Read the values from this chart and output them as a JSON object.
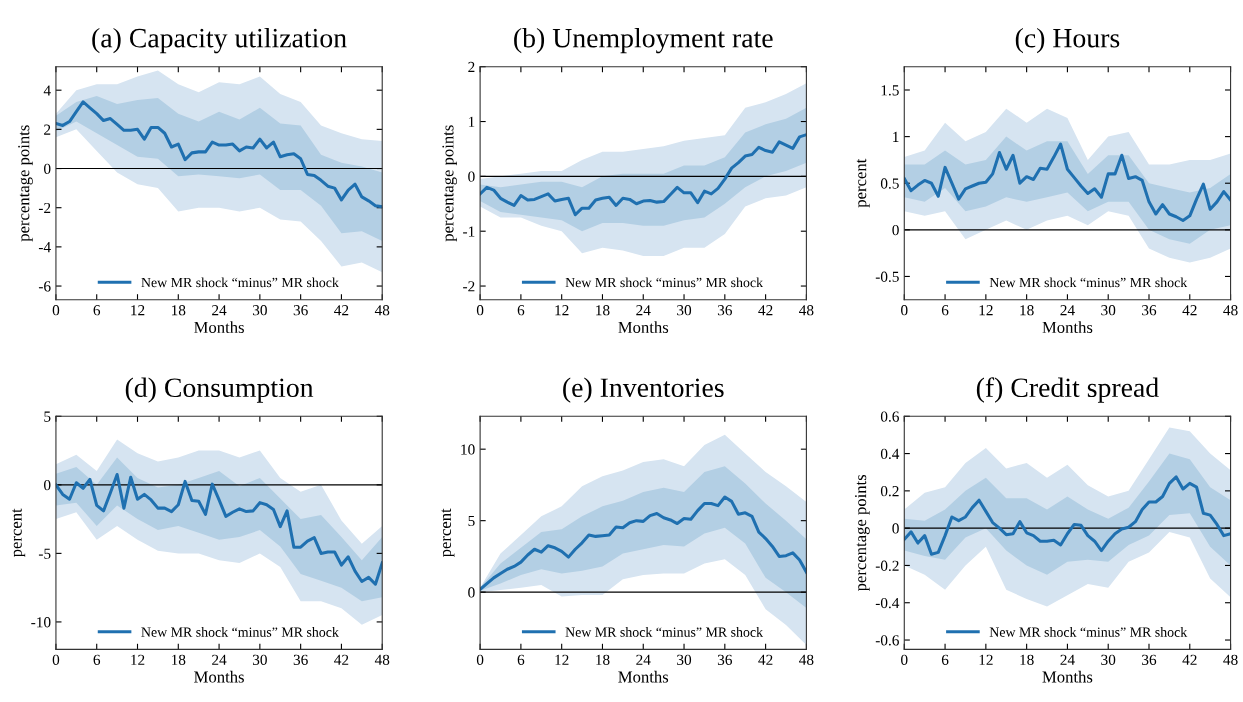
{
  "chart_data": [
    {
      "type": "line",
      "title": "(a) Capacity utilization",
      "xlabel": "Months",
      "ylabel": "percentage points",
      "xlim": [
        0,
        48
      ],
      "xticks": [
        0,
        6,
        12,
        18,
        24,
        30,
        36,
        42,
        48
      ],
      "ylim": [
        -6.7,
        5.2
      ],
      "yticks": [
        -6,
        -4,
        -2,
        0,
        2,
        4
      ],
      "legend": "bottom",
      "x": [
        0,
        1,
        2,
        3,
        4,
        5,
        6,
        7,
        8,
        9,
        10,
        11,
        12,
        13,
        14,
        15,
        16,
        17,
        18,
        19,
        20,
        21,
        22,
        23,
        24,
        25,
        26,
        27,
        28,
        29,
        30,
        31,
        32,
        33,
        34,
        35,
        36,
        37,
        38,
        39,
        40,
        41,
        42,
        43,
        44,
        45,
        46,
        47,
        48
      ],
      "ref_lines": [
        {
          "axis": "y",
          "value": 0,
          "color": "#000000"
        }
      ],
      "series": [
        {
          "color": "#d6e4f1",
          "x": [
            0,
            3,
            6,
            9,
            12,
            15,
            18,
            21,
            24,
            27,
            30,
            33,
            36,
            39,
            42,
            45,
            48
          ],
          "values": [
            null,
            null,
            null,
            null,
            null,
            null,
            null,
            null,
            null,
            null,
            null,
            null,
            null,
            null,
            null,
            null,
            null
          ],
          "lower": [
            1.6,
            2.0,
            0.9,
            -0.2,
            -0.8,
            -1.0,
            -2.2,
            -2.0,
            -2.0,
            -2.2,
            -2.0,
            -2.6,
            -2.7,
            -3.7,
            -5.0,
            -4.8,
            -5.3
          ],
          "upper": [
            2.8,
            4.0,
            4.3,
            4.3,
            4.7,
            5.0,
            4.3,
            3.9,
            4.4,
            4.3,
            4.7,
            3.8,
            3.4,
            2.2,
            1.8,
            1.5,
            1.4
          ]
        },
        {
          "color": "#b3cfe4",
          "x": [
            0,
            3,
            6,
            9,
            12,
            15,
            18,
            21,
            24,
            27,
            30,
            33,
            36,
            39,
            42,
            45,
            48
          ],
          "values": [
            null,
            null,
            null,
            null,
            null,
            null,
            null,
            null,
            null,
            null,
            null,
            null,
            null,
            null,
            null,
            null,
            null
          ],
          "lower": [
            1.9,
            2.4,
            1.8,
            1.2,
            0.6,
            0.5,
            -0.4,
            -0.3,
            -0.4,
            -0.5,
            -0.3,
            -1.1,
            -1.1,
            -1.9,
            -3.3,
            -3.2,
            -3.7
          ],
          "upper": [
            2.7,
            3.4,
            3.7,
            3.3,
            3.5,
            3.6,
            2.8,
            2.4,
            2.9,
            2.5,
            3.1,
            2.3,
            2.2,
            0.7,
            0.3,
            0.1,
            -0.2
          ]
        },
        {
          "name": "New MR shock “minus” MR shock",
          "color": "#1f70b0",
          "values": [
            2.3,
            2.2,
            2.4,
            2.9,
            3.4,
            3.1,
            2.8,
            2.45,
            2.55,
            2.25,
            1.95,
            1.95,
            2.0,
            1.5,
            2.1,
            2.1,
            1.8,
            1.1,
            1.25,
            0.45,
            0.8,
            0.85,
            0.85,
            1.35,
            1.2,
            1.2,
            1.25,
            0.9,
            1.1,
            1.05,
            1.5,
            1.05,
            1.35,
            0.6,
            0.7,
            0.75,
            0.5,
            -0.3,
            -0.35,
            -0.6,
            -0.9,
            -1.0,
            -1.6,
            -1.1,
            -0.8,
            -1.45,
            -1.65,
            -1.9,
            -1.95
          ]
        }
      ]
    },
    {
      "type": "line",
      "title": "(b) Unemployment rate",
      "xlabel": "Months",
      "ylabel": "percentage points",
      "xlim": [
        0,
        48
      ],
      "xticks": [
        0,
        6,
        12,
        18,
        24,
        30,
        36,
        42,
        48
      ],
      "ylim": [
        -2.25,
        2
      ],
      "yticks": [
        -2,
        -1,
        0,
        1,
        2
      ],
      "legend": "bottom",
      "x": [
        0,
        1,
        2,
        3,
        4,
        5,
        6,
        7,
        8,
        9,
        10,
        11,
        12,
        13,
        14,
        15,
        16,
        17,
        18,
        19,
        20,
        21,
        22,
        23,
        24,
        25,
        26,
        27,
        28,
        29,
        30,
        31,
        32,
        33,
        34,
        35,
        36,
        37,
        38,
        39,
        40,
        41,
        42,
        43,
        44,
        45,
        46,
        47,
        48
      ],
      "ref_lines": [
        {
          "axis": "y",
          "value": 0,
          "color": "#000000"
        }
      ],
      "series": [
        {
          "color": "#d6e4f1",
          "x": [
            0,
            3,
            6,
            9,
            12,
            15,
            18,
            21,
            24,
            27,
            30,
            33,
            36,
            39,
            42,
            45,
            48
          ],
          "values": [
            null,
            null,
            null,
            null,
            null,
            null,
            null,
            null,
            null,
            null,
            null,
            null,
            null,
            null,
            null,
            null,
            null
          ],
          "lower": [
            -0.55,
            -0.75,
            -0.75,
            -0.9,
            -1.0,
            -1.4,
            -1.3,
            -1.35,
            -1.45,
            -1.45,
            -1.3,
            -1.3,
            -1.05,
            -0.55,
            -0.4,
            -0.35,
            -0.2
          ],
          "upper": [
            -0.05,
            0.0,
            0.05,
            0.1,
            0.1,
            0.3,
            0.45,
            0.45,
            0.5,
            0.55,
            0.65,
            0.7,
            0.75,
            1.25,
            1.35,
            1.5,
            1.7
          ]
        },
        {
          "color": "#b3cfe4",
          "x": [
            0,
            3,
            6,
            9,
            12,
            15,
            18,
            21,
            24,
            27,
            30,
            33,
            36,
            39,
            42,
            45,
            48
          ],
          "values": [
            null,
            null,
            null,
            null,
            null,
            null,
            null,
            null,
            null,
            null,
            null,
            null,
            null,
            null,
            null,
            null,
            null
          ],
          "lower": [
            -0.45,
            -0.65,
            -0.7,
            -0.75,
            -0.8,
            -1.0,
            -0.85,
            -0.85,
            -0.9,
            -0.9,
            -0.8,
            -0.75,
            -0.5,
            -0.2,
            0.0,
            0.1,
            0.25
          ],
          "upper": [
            -0.15,
            -0.2,
            -0.15,
            -0.1,
            -0.1,
            -0.2,
            0.0,
            0.05,
            0.05,
            0.05,
            0.2,
            0.2,
            0.35,
            0.8,
            0.95,
            1.05,
            1.25
          ]
        },
        {
          "name": "New MR shock “minus” MR shock",
          "color": "#1f70b0",
          "values": [
            -0.32,
            -0.2,
            -0.25,
            -0.4,
            -0.47,
            -0.53,
            -0.35,
            -0.43,
            -0.42,
            -0.37,
            -0.32,
            -0.45,
            -0.42,
            -0.4,
            -0.7,
            -0.58,
            -0.58,
            -0.43,
            -0.4,
            -0.38,
            -0.53,
            -0.4,
            -0.42,
            -0.5,
            -0.45,
            -0.44,
            -0.47,
            -0.46,
            -0.33,
            -0.2,
            -0.3,
            -0.3,
            -0.48,
            -0.27,
            -0.32,
            -0.22,
            -0.05,
            0.15,
            0.25,
            0.37,
            0.4,
            0.53,
            0.47,
            0.44,
            0.63,
            0.57,
            0.51,
            0.72,
            0.76
          ]
        }
      ]
    },
    {
      "type": "line",
      "title": "(c) Hours",
      "xlabel": "Months",
      "ylabel": "percent",
      "xlim": [
        0,
        48
      ],
      "xticks": [
        0,
        6,
        12,
        18,
        24,
        30,
        36,
        42,
        48
      ],
      "ylim": [
        -0.75,
        1.75
      ],
      "yticks": [
        -0.5,
        0,
        0.5,
        1,
        1.5
      ],
      "legend": "bottom",
      "x": [
        0,
        1,
        2,
        3,
        4,
        5,
        6,
        7,
        8,
        9,
        10,
        11,
        12,
        13,
        14,
        15,
        16,
        17,
        18,
        19,
        20,
        21,
        22,
        23,
        24,
        25,
        26,
        27,
        28,
        29,
        30,
        31,
        32,
        33,
        34,
        35,
        36,
        37,
        38,
        39,
        40,
        41,
        42,
        43,
        44,
        45,
        46,
        47,
        48
      ],
      "ref_lines": [
        {
          "axis": "y",
          "value": 0,
          "color": "#000000"
        }
      ],
      "series": [
        {
          "color": "#d6e4f1",
          "x": [
            0,
            3,
            6,
            9,
            12,
            15,
            18,
            21,
            24,
            27,
            30,
            33,
            36,
            39,
            42,
            45,
            48
          ],
          "values": [
            null,
            null,
            null,
            null,
            null,
            null,
            null,
            null,
            null,
            null,
            null,
            null,
            null,
            null,
            null,
            null,
            null
          ],
          "lower": [
            0.2,
            0.15,
            0.2,
            -0.1,
            0.0,
            0.1,
            0.0,
            0.1,
            0.15,
            0.05,
            0.2,
            0.15,
            -0.2,
            -0.3,
            -0.35,
            -0.3,
            -0.2
          ],
          "upper": [
            0.78,
            0.85,
            1.15,
            0.95,
            1.05,
            1.3,
            1.15,
            1.3,
            1.2,
            0.75,
            1.0,
            1.05,
            0.7,
            0.7,
            0.75,
            0.75,
            0.82
          ]
        },
        {
          "color": "#b3cfe4",
          "x": [
            0,
            3,
            6,
            9,
            12,
            15,
            18,
            21,
            24,
            27,
            30,
            33,
            36,
            39,
            42,
            45,
            48
          ],
          "values": [
            null,
            null,
            null,
            null,
            null,
            null,
            null,
            null,
            null,
            null,
            null,
            null,
            null,
            null,
            null,
            null,
            null
          ],
          "lower": [
            0.35,
            0.3,
            0.45,
            0.2,
            0.25,
            0.35,
            0.3,
            0.35,
            0.4,
            0.2,
            0.3,
            0.3,
            0.0,
            -0.1,
            -0.15,
            0.0,
            0.05
          ],
          "upper": [
            0.7,
            0.7,
            0.85,
            0.7,
            0.75,
            1.0,
            0.85,
            0.95,
            0.95,
            0.6,
            0.8,
            0.8,
            0.5,
            0.45,
            0.4,
            0.45,
            0.6
          ]
        },
        {
          "name": "New MR shock “minus” MR shock",
          "color": "#1f70b0",
          "values": [
            0.55,
            0.42,
            0.48,
            0.53,
            0.5,
            0.36,
            0.67,
            0.5,
            0.33,
            0.44,
            0.47,
            0.5,
            0.51,
            0.6,
            0.83,
            0.65,
            0.8,
            0.5,
            0.57,
            0.54,
            0.66,
            0.65,
            0.78,
            0.92,
            0.65,
            0.56,
            0.47,
            0.39,
            0.44,
            0.35,
            0.6,
            0.6,
            0.8,
            0.55,
            0.57,
            0.53,
            0.3,
            0.17,
            0.27,
            0.17,
            0.14,
            0.1,
            0.15,
            0.33,
            0.49,
            0.22,
            0.3,
            0.41,
            0.32
          ]
        }
      ]
    },
    {
      "type": "line",
      "title": "(d) Consumption",
      "xlabel": "Months",
      "ylabel": "percent",
      "xlim": [
        0,
        48
      ],
      "xticks": [
        0,
        6,
        12,
        18,
        24,
        30,
        36,
        42,
        48
      ],
      "ylim": [
        -12,
        5
      ],
      "yticks": [
        -10,
        -5,
        0,
        5
      ],
      "legend": "bottom",
      "x": [
        0,
        1,
        2,
        3,
        4,
        5,
        6,
        7,
        8,
        9,
        10,
        11,
        12,
        13,
        14,
        15,
        16,
        17,
        18,
        19,
        20,
        21,
        22,
        23,
        24,
        25,
        26,
        27,
        28,
        29,
        30,
        31,
        32,
        33,
        34,
        35,
        36,
        37,
        38,
        39,
        40,
        41,
        42,
        43,
        44,
        45,
        46,
        47,
        48
      ],
      "ref_lines": [
        {
          "axis": "y",
          "value": 0,
          "color": "#000000"
        }
      ],
      "series": [
        {
          "color": "#d6e4f1",
          "x": [
            0,
            3,
            6,
            9,
            12,
            15,
            18,
            21,
            24,
            27,
            30,
            33,
            36,
            39,
            42,
            45,
            48
          ],
          "values": [
            null,
            null,
            null,
            null,
            null,
            null,
            null,
            null,
            null,
            null,
            null,
            null,
            null,
            null,
            null,
            null,
            null
          ],
          "lower": [
            -2.5,
            -2.0,
            -4.0,
            -3.0,
            -4.0,
            -4.8,
            -5.0,
            -5.0,
            -5.5,
            -5.7,
            -5.0,
            -6.0,
            -8.5,
            -8.5,
            -9.0,
            -10.2,
            -9.5
          ],
          "upper": [
            1.5,
            2.2,
            1.0,
            3.3,
            2.3,
            1.7,
            2.0,
            2.5,
            2.5,
            2.0,
            2.5,
            0.5,
            -0.5,
            0.0,
            -2.6,
            -4.3,
            -3.0
          ]
        },
        {
          "color": "#b3cfe4",
          "x": [
            0,
            3,
            6,
            9,
            12,
            15,
            18,
            21,
            24,
            27,
            30,
            33,
            36,
            39,
            42,
            45,
            48
          ],
          "values": [
            null,
            null,
            null,
            null,
            null,
            null,
            null,
            null,
            null,
            null,
            null,
            null,
            null,
            null,
            null,
            null,
            null
          ],
          "lower": [
            -1.5,
            -1.3,
            -3.0,
            -1.5,
            -2.5,
            -3.3,
            -3.0,
            -3.5,
            -4.0,
            -3.8,
            -3.3,
            -4.5,
            -6.5,
            -7.0,
            -7.5,
            -8.5,
            -8.2
          ],
          "upper": [
            0.8,
            1.3,
            0.0,
            2.0,
            0.5,
            -0.2,
            0.0,
            0.5,
            1.0,
            -0.1,
            0.5,
            -1.0,
            -2.5,
            -2.2,
            -3.8,
            -5.5,
            -3.8
          ]
        },
        {
          "name": "New MR shock “minus” MR shock",
          "color": "#1f70b0",
          "values": [
            0,
            -0.7,
            -1.05,
            0.15,
            -0.25,
            0.4,
            -1.5,
            -1.9,
            -0.6,
            0.75,
            -1.7,
            0.55,
            -1.05,
            -0.7,
            -1.1,
            -1.7,
            -1.7,
            -1.95,
            -1.45,
            0.25,
            -1.15,
            -1.2,
            -2.15,
            0.05,
            -1.1,
            -2.3,
            -2.0,
            -1.75,
            -1.95,
            -1.9,
            -1.3,
            -1.45,
            -1.8,
            -3.05,
            -1.9,
            -4.55,
            -4.55,
            -4.1,
            -3.85,
            -5.0,
            -4.9,
            -4.9,
            -5.85,
            -5.25,
            -6.3,
            -7.05,
            -6.75,
            -7.25,
            -5.7
          ]
        }
      ]
    },
    {
      "type": "line",
      "title": "(e) Inventories",
      "xlabel": "Months",
      "ylabel": "percent",
      "xlim": [
        0,
        48
      ],
      "xticks": [
        0,
        6,
        12,
        18,
        24,
        30,
        36,
        42,
        48
      ],
      "ylim": [
        -4,
        12.3
      ],
      "yticks": [
        0,
        5,
        10
      ],
      "legend": "bottom",
      "x": [
        0,
        1,
        2,
        3,
        4,
        5,
        6,
        7,
        8,
        9,
        10,
        11,
        12,
        13,
        14,
        15,
        16,
        17,
        18,
        19,
        20,
        21,
        22,
        23,
        24,
        25,
        26,
        27,
        28,
        29,
        30,
        31,
        32,
        33,
        34,
        35,
        36,
        37,
        38,
        39,
        40,
        41,
        42,
        43,
        44,
        45,
        46,
        47,
        48
      ],
      "ref_lines": [
        {
          "axis": "y",
          "value": 0,
          "color": "#000000"
        }
      ],
      "series": [
        {
          "color": "#d6e4f1",
          "x": [
            0,
            3,
            6,
            9,
            12,
            15,
            18,
            21,
            24,
            27,
            30,
            33,
            36,
            39,
            42,
            45,
            48
          ],
          "values": [
            null,
            null,
            null,
            null,
            null,
            null,
            null,
            null,
            null,
            null,
            null,
            null,
            null,
            null,
            null,
            null,
            null
          ],
          "lower": [
            0.0,
            0.15,
            0.3,
            0.5,
            -0.3,
            -0.2,
            -0.2,
            0.9,
            1.2,
            1.3,
            1.3,
            2.0,
            2.3,
            1.2,
            -1.2,
            -2.3,
            -3.7
          ],
          "upper": [
            0.3,
            2.7,
            4.0,
            5.3,
            6.0,
            7.4,
            8.1,
            8.5,
            9.1,
            9.3,
            8.8,
            10.3,
            11.0,
            9.7,
            8.4,
            7.4,
            6.3
          ]
        },
        {
          "color": "#b3cfe4",
          "x": [
            0,
            3,
            6,
            9,
            12,
            15,
            18,
            21,
            24,
            27,
            30,
            33,
            36,
            39,
            42,
            45,
            48
          ],
          "values": [
            null,
            null,
            null,
            null,
            null,
            null,
            null,
            null,
            null,
            null,
            null,
            null,
            null,
            null,
            null,
            null,
            null
          ],
          "lower": [
            0.1,
            0.6,
            1.2,
            1.6,
            1.3,
            1.5,
            1.8,
            2.7,
            3.0,
            3.3,
            3.2,
            4.1,
            4.5,
            3.4,
            1.0,
            0.0,
            -1.1
          ],
          "upper": [
            0.3,
            2.0,
            3.1,
            4.2,
            4.4,
            5.3,
            6.0,
            6.4,
            7.0,
            7.3,
            7.0,
            8.4,
            8.8,
            7.6,
            6.2,
            5.0,
            3.7
          ]
        },
        {
          "name": "New MR shock “minus” MR shock",
          "color": "#1f70b0",
          "values": [
            0.2,
            0.6,
            1.0,
            1.3,
            1.6,
            1.8,
            2.1,
            2.6,
            3.0,
            2.8,
            3.25,
            3.1,
            2.85,
            2.45,
            3.0,
            3.45,
            4.0,
            3.9,
            3.95,
            4.0,
            4.55,
            4.5,
            4.85,
            5.0,
            4.95,
            5.35,
            5.5,
            5.2,
            5.05,
            4.8,
            5.15,
            5.1,
            5.7,
            6.2,
            6.2,
            6.05,
            6.65,
            6.35,
            5.45,
            5.55,
            5.3,
            4.2,
            3.75,
            3.2,
            2.5,
            2.55,
            2.75,
            2.25,
            1.4
          ]
        }
      ]
    },
    {
      "type": "line",
      "title": "(f) Credit spread",
      "xlabel": "Months",
      "ylabel": "percentage points",
      "xlim": [
        0,
        48
      ],
      "xticks": [
        0,
        6,
        12,
        18,
        24,
        30,
        36,
        42,
        48
      ],
      "ylim": [
        -0.65,
        0.6
      ],
      "yticks": [
        -0.6,
        -0.4,
        -0.2,
        0,
        0.2,
        0.4,
        0.6
      ],
      "legend": "bottom",
      "x": [
        0,
        1,
        2,
        3,
        4,
        5,
        6,
        7,
        8,
        9,
        10,
        11,
        12,
        13,
        14,
        15,
        16,
        17,
        18,
        19,
        20,
        21,
        22,
        23,
        24,
        25,
        26,
        27,
        28,
        29,
        30,
        31,
        32,
        33,
        34,
        35,
        36,
        37,
        38,
        39,
        40,
        41,
        42,
        43,
        44,
        45,
        46,
        47,
        48
      ],
      "ref_lines": [
        {
          "axis": "y",
          "value": 0,
          "color": "#000000"
        }
      ],
      "series": [
        {
          "color": "#d6e4f1",
          "x": [
            0,
            3,
            6,
            9,
            12,
            15,
            18,
            21,
            24,
            27,
            30,
            33,
            36,
            39,
            42,
            45,
            48
          ],
          "values": [
            null,
            null,
            null,
            null,
            null,
            null,
            null,
            null,
            null,
            null,
            null,
            null,
            null,
            null,
            null,
            null,
            null
          ],
          "lower": [
            -0.2,
            -0.25,
            -0.33,
            -0.2,
            -0.1,
            -0.33,
            -0.38,
            -0.42,
            -0.36,
            -0.3,
            -0.32,
            -0.18,
            -0.13,
            -0.02,
            -0.05,
            -0.27,
            -0.37
          ],
          "upper": [
            0.1,
            0.19,
            0.22,
            0.35,
            0.43,
            0.32,
            0.35,
            0.27,
            0.34,
            0.23,
            0.17,
            0.2,
            0.37,
            0.54,
            0.52,
            0.4,
            0.31
          ]
        },
        {
          "color": "#b3cfe4",
          "x": [
            0,
            3,
            6,
            9,
            12,
            15,
            18,
            21,
            24,
            27,
            30,
            33,
            36,
            39,
            42,
            45,
            48
          ],
          "values": [
            null,
            null,
            null,
            null,
            null,
            null,
            null,
            null,
            null,
            null,
            null,
            null,
            null,
            null,
            null,
            null,
            null
          ],
          "lower": [
            -0.12,
            -0.15,
            -0.17,
            -0.05,
            0.0,
            -0.12,
            -0.2,
            -0.25,
            -0.18,
            -0.17,
            -0.18,
            -0.09,
            -0.04,
            0.07,
            0.08,
            -0.1,
            -0.2
          ],
          "upper": [
            0.05,
            0.04,
            0.1,
            0.2,
            0.27,
            0.16,
            0.16,
            0.1,
            0.17,
            0.1,
            0.05,
            0.11,
            0.25,
            0.4,
            0.37,
            0.22,
            0.15
          ]
        },
        {
          "name": "New MR shock “minus” MR shock",
          "color": "#1f70b0",
          "values": [
            -0.06,
            -0.02,
            -0.08,
            -0.04,
            -0.14,
            -0.13,
            -0.04,
            0.06,
            0.04,
            0.06,
            0.11,
            0.15,
            0.09,
            0.03,
            0.0,
            -0.035,
            -0.03,
            0.035,
            -0.025,
            -0.04,
            -0.07,
            -0.07,
            -0.065,
            -0.09,
            -0.03,
            0.02,
            0.015,
            -0.04,
            -0.07,
            -0.12,
            -0.07,
            -0.03,
            -0.005,
            0.005,
            0.035,
            0.1,
            0.14,
            0.14,
            0.17,
            0.24,
            0.275,
            0.21,
            0.24,
            0.22,
            0.08,
            0.07,
            0.02,
            -0.04,
            -0.03
          ]
        }
      ]
    }
  ]
}
